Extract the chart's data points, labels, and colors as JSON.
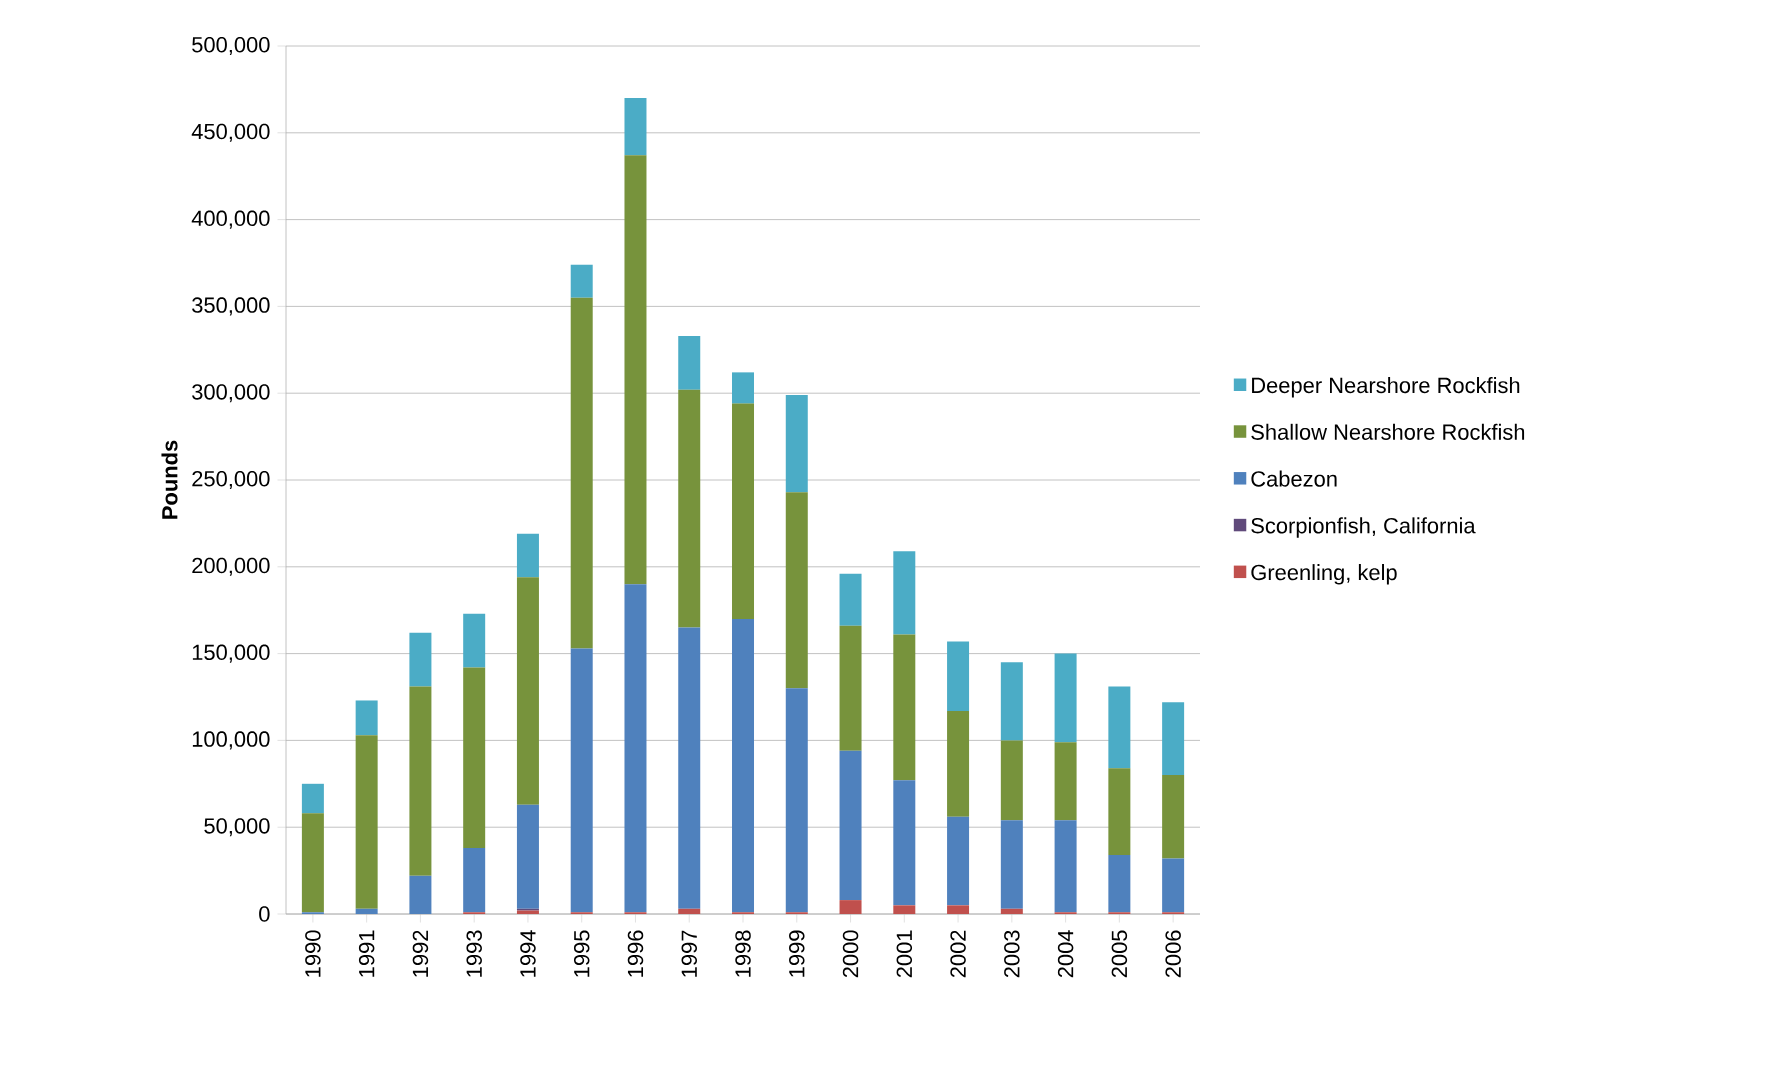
{
  "chart_data": {
    "type": "bar",
    "stacked": true,
    "ylabel": "Pounds",
    "categories": [
      "1990",
      "1991",
      "1992",
      "1993",
      "1994",
      "1995",
      "1996",
      "1997",
      "1998",
      "1999",
      "2000",
      "2001",
      "2002",
      "2003",
      "2004",
      "2005",
      "2006"
    ],
    "series": [
      {
        "name": "Greenling, kelp",
        "color": "#c0504d",
        "values": [
          0,
          0,
          0,
          1000,
          2000,
          1000,
          1000,
          3000,
          1000,
          1000,
          8000,
          5000,
          5000,
          3000,
          1000,
          1000,
          1000
        ]
      },
      {
        "name": "Scorpionfish, California",
        "color": "#604a7b",
        "values": [
          0,
          0,
          0,
          0,
          1000,
          0,
          0,
          0,
          0,
          0,
          0,
          0,
          0,
          0,
          0,
          0,
          0
        ]
      },
      {
        "name": "Cabezon",
        "color": "#4f81bd",
        "values": [
          1000,
          3000,
          22000,
          37000,
          60000,
          152000,
          189000,
          162000,
          169000,
          129000,
          86000,
          72000,
          51000,
          51000,
          53000,
          33000,
          31000
        ]
      },
      {
        "name": "Shallow Nearshore Rockfish",
        "color": "#77933c",
        "values": [
          57000,
          100000,
          109000,
          104000,
          131000,
          202000,
          247000,
          137000,
          124000,
          113000,
          72000,
          84000,
          61000,
          46000,
          45000,
          50000,
          48000
        ]
      },
      {
        "name": "Deeper  Nearshore Rockfish",
        "color": "#4bacc6",
        "values": [
          17000,
          20000,
          31000,
          31000,
          25000,
          19000,
          33000,
          31000,
          18000,
          56000,
          30000,
          48000,
          40000,
          45000,
          51000,
          47000,
          42000
        ]
      }
    ],
    "ylim": [
      0,
      500000
    ],
    "yticks": [
      0,
      {
        "value": 50000,
        "label": "50,000"
      },
      {
        "value": 100000,
        "label": "100,000"
      },
      {
        "value": 150000,
        "label": "150,000"
      },
      {
        "value": 200000,
        "label": "200,000"
      },
      {
        "value": 250000,
        "label": "250,000"
      },
      {
        "value": 300000,
        "label": "300,000"
      },
      {
        "value": 350000,
        "label": "350,000"
      },
      {
        "value": 400000,
        "label": "400,000"
      },
      {
        "value": 450000,
        "label": "450,000"
      },
      {
        "value": 500000,
        "label": "500,000"
      }
    ],
    "grid": "y",
    "legend": "right"
  }
}
